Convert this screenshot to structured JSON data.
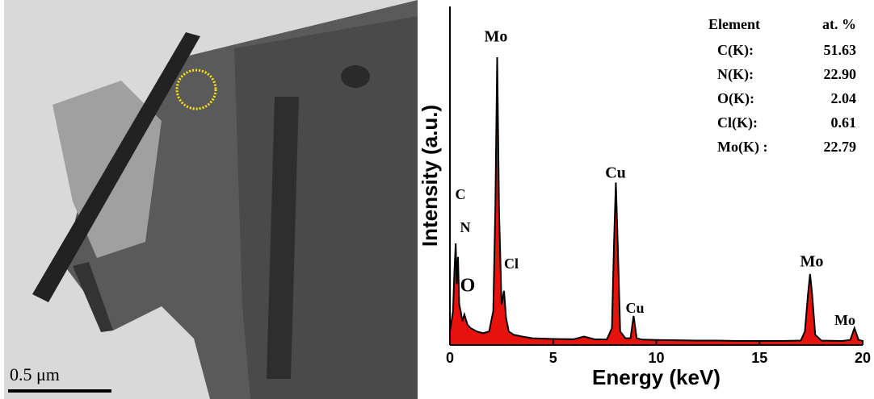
{
  "image": {
    "scale_bar": "0.5 μm"
  },
  "chart_data": {
    "type": "area",
    "x_label": "Energy (keV)",
    "y_label": "Intensity (a.u.)",
    "x": [
      0,
      0.15,
      0.22,
      0.28,
      0.33,
      0.39,
      0.45,
      0.52,
      0.6,
      0.7,
      0.85,
      1.0,
      1.3,
      1.6,
      1.9,
      2.1,
      2.2,
      2.29,
      2.38,
      2.5,
      2.62,
      2.72,
      2.85,
      3.1,
      3.5,
      4,
      5,
      6,
      6.5,
      7,
      7.6,
      7.85,
      7.95,
      8.04,
      8.13,
      8.25,
      8.5,
      8.75,
      8.9,
      9.05,
      9.3,
      10,
      11,
      12,
      13,
      14,
      15,
      16,
      17,
      17.2,
      17.35,
      17.45,
      17.55,
      17.7,
      18,
      19,
      19.4,
      19.6,
      19.8,
      20
    ],
    "values": [
      4,
      10,
      22,
      30,
      18,
      26,
      12,
      10,
      7,
      9,
      6,
      5,
      4,
      3.5,
      4,
      10,
      40,
      85,
      40,
      12,
      16,
      8,
      4,
      3,
      2.5,
      2,
      1.8,
      1.7,
      2.5,
      1.7,
      1.6,
      5,
      30,
      48,
      30,
      4,
      2,
      2,
      8.6,
      2,
      1.6,
      1.5,
      1.4,
      1.3,
      1.3,
      1.2,
      1.2,
      1.2,
      1.3,
      4,
      15,
      21,
      15,
      3,
      1.3,
      1.2,
      1.5,
      5,
      1.5,
      1.2
    ],
    "color": "#e8120c",
    "line_color": "#000000",
    "xlim": [
      0,
      20
    ],
    "xticks": [
      0,
      5,
      10,
      15,
      20
    ],
    "ylim": [
      0,
      100
    ],
    "annotations": [
      "Mo",
      "C",
      "N",
      "O",
      "Cl",
      "Cu",
      "Cu",
      "Mo",
      "Mo"
    ],
    "table": {
      "header": [
        "Element",
        "at. %"
      ],
      "rows": [
        [
          "C(K):",
          "51.63"
        ],
        [
          "N(K):",
          "22.90"
        ],
        [
          "O(K):",
          "2.04"
        ],
        [
          "Cl(K):",
          "0.61"
        ],
        [
          "Mo(K) :",
          "22.79"
        ]
      ]
    }
  }
}
